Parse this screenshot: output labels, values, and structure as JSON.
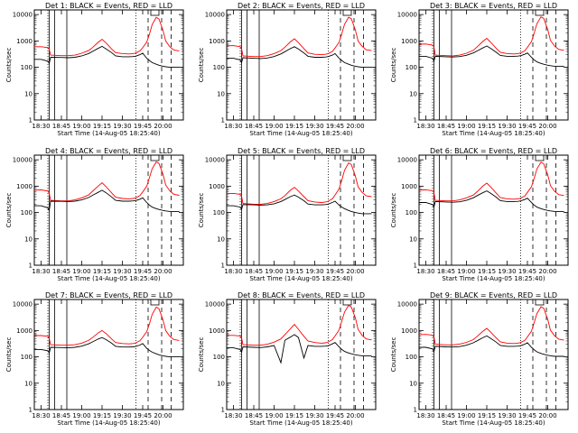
{
  "colors": {
    "events": "#000000",
    "lld": "#ff0000",
    "markers": "#000000",
    "background": "#ffffff"
  },
  "chart_data": {
    "type": "line",
    "panel_titles": [
      "Det 1: BLACK = Events, RED = LLD",
      "Det 2: BLACK = Events, RED = LLD",
      "Det 3: BLACK = Events, RED = LLD",
      "Det 4: BLACK = Events, RED = LLD",
      "Det 5: BLACK = Events, RED = LLD",
      "Det 6: BLACK = Events, RED = LLD",
      "Det 7: BLACK = Events, RED = LLD",
      "Det 8: BLACK = Events, RED = LLD",
      "Det 9: BLACK = Events, RED = LLD"
    ],
    "xlabel": "Start Time (14-Aug-05 18:25:40)",
    "ylabel": "Counts/sec",
    "yscale": "log",
    "ylim": [
      1,
      15000
    ],
    "xlim": [
      "18:25",
      "20:15"
    ],
    "x_ticks": [
      "18:30",
      "18:45",
      "19:00",
      "19:15",
      "19:30",
      "19:45",
      "20:00"
    ],
    "y_ticks": [
      "1",
      "10",
      "100",
      "1000",
      "10000"
    ],
    "layout": "3x3 grid",
    "markers": {
      "solid": [
        "18:36",
        "18:40",
        "18:49"
      ],
      "dotted": [
        "18:35",
        "19:40"
      ],
      "dashed": [
        "19:49",
        "19:59",
        "20:06"
      ],
      "box": [
        "19:51",
        "19:57"
      ]
    },
    "x": [
      "18:25",
      "18:30",
      "18:35",
      "18:36",
      "18:37",
      "18:45",
      "18:50",
      "18:55",
      "19:00",
      "19:05",
      "19:08",
      "19:12",
      "19:15",
      "19:18",
      "19:22",
      "19:25",
      "19:30",
      "19:35",
      "19:38",
      "19:40",
      "19:43",
      "19:45",
      "19:48",
      "19:50",
      "19:52",
      "19:55",
      "19:57",
      "20:00",
      "20:02",
      "20:05",
      "20:08",
      "20:12"
    ],
    "series_sets": [
      {
        "detector": "Det 1",
        "series": [
          {
            "name": "LLD",
            "color": "#ff0000",
            "values": [
              600,
              600,
              560,
              480,
              290,
              275,
              275,
              290,
              340,
              430,
              560,
              880,
              1150,
              830,
              500,
              360,
              330,
              320,
              330,
              350,
              420,
              550,
              900,
              1800,
              4200,
              7800,
              6800,
              2500,
              1000,
              600,
              450,
              420
            ]
          },
          {
            "name": "Events",
            "color": "#000000",
            "values": [
              200,
              200,
              170,
              140,
              240,
              235,
              230,
              240,
              270,
              330,
              400,
              520,
              620,
              500,
              360,
              270,
              250,
              250,
              255,
              265,
              300,
              340,
              220,
              180,
              150,
              130,
              120,
              110,
              105,
              100,
              100,
              100
            ]
          }
        ]
      },
      {
        "detector": "Det 2",
        "series": [
          {
            "name": "LLD",
            "color": "#ff0000",
            "values": [
              650,
              660,
              600,
              500,
              270,
              255,
              255,
              275,
              330,
              430,
              580,
              920,
              1200,
              860,
              510,
              350,
              310,
              300,
              310,
              330,
              400,
              540,
              900,
              1900,
              4300,
              7900,
              7000,
              2600,
              1000,
              620,
              460,
              430
            ]
          },
          {
            "name": "Events",
            "color": "#000000",
            "values": [
              220,
              220,
              190,
              150,
              230,
              220,
              215,
              225,
              255,
              320,
              390,
              510,
              600,
              490,
              350,
              260,
              240,
              240,
              245,
              255,
              290,
              330,
              220,
              180,
              150,
              130,
              120,
              110,
              105,
              100,
              100,
              100
            ]
          }
        ]
      },
      {
        "detector": "Det 3",
        "series": [
          {
            "name": "LLD",
            "color": "#ff0000",
            "values": [
              750,
              760,
              700,
              580,
              290,
              275,
              270,
              290,
              340,
              440,
              600,
              950,
              1250,
              880,
              520,
              370,
              330,
              320,
              330,
              350,
              420,
              570,
              950,
              2000,
              4500,
              8200,
              7200,
              2700,
              1050,
              640,
              480,
              440
            ]
          },
          {
            "name": "Events",
            "color": "#000000",
            "values": [
              260,
              260,
              220,
              170,
              260,
              250,
              245,
              255,
              285,
              350,
              420,
              540,
              640,
              520,
              370,
              280,
              260,
              260,
              265,
              275,
              310,
              350,
              240,
              190,
              160,
              140,
              130,
              120,
              115,
              110,
              110,
              110
            ]
          }
        ]
      },
      {
        "detector": "Det 4",
        "series": [
          {
            "name": "LLD",
            "color": "#ff0000",
            "values": [
              700,
              720,
              650,
              540,
              290,
              275,
              275,
              300,
              360,
              460,
              640,
              1000,
              1350,
              950,
              560,
              380,
              340,
              330,
              340,
              360,
              440,
              600,
              1000,
              2100,
              4600,
              8300,
              7300,
              2800,
              1100,
              660,
              490,
              450
            ]
          },
          {
            "name": "Events",
            "color": "#000000",
            "values": [
              180,
              180,
              150,
              120,
              270,
              265,
              260,
              270,
              300,
              370,
              450,
              580,
              700,
              560,
              390,
              290,
              270,
              270,
              275,
              285,
              320,
              360,
              240,
              190,
              160,
              140,
              130,
              120,
              115,
              110,
              110,
              110
            ]
          }
        ]
      },
      {
        "detector": "Det 5",
        "series": [
          {
            "name": "LLD",
            "color": "#ff0000",
            "values": [
              520,
              530,
              490,
              420,
              220,
              205,
              205,
              220,
              260,
              330,
              440,
              700,
              900,
              650,
              400,
              280,
              250,
              240,
              250,
              270,
              330,
              460,
              800,
              1700,
              4000,
              7600,
              6600,
              2400,
              950,
              580,
              430,
              400
            ]
          },
          {
            "name": "Events",
            "color": "#000000",
            "values": [
              180,
              180,
              160,
              130,
              200,
              195,
              190,
              195,
              215,
              260,
              310,
              400,
              460,
              380,
              280,
              210,
              195,
              195,
              200,
              210,
              240,
              270,
              190,
              160,
              140,
              120,
              110,
              100,
              95,
              90,
              90,
              90
            ]
          }
        ]
      },
      {
        "detector": "Det 6",
        "series": [
          {
            "name": "LLD",
            "color": "#ff0000",
            "values": [
              720,
              730,
              670,
              560,
              290,
              275,
              275,
              300,
              360,
              460,
              620,
              1000,
              1300,
              920,
              540,
              370,
              330,
              320,
              330,
              350,
              420,
              580,
              960,
              2000,
              4500,
              8100,
              7100,
              2700,
              1050,
              640,
              480,
              440
            ]
          },
          {
            "name": "Events",
            "color": "#000000",
            "values": [
              240,
              240,
              200,
              160,
              260,
              250,
              245,
              255,
              290,
              360,
              440,
              560,
              660,
              530,
              380,
              280,
              260,
              260,
              265,
              275,
              310,
              350,
              240,
              190,
              160,
              140,
              130,
              120,
              115,
              110,
              110,
              110
            ]
          }
        ]
      },
      {
        "detector": "Det 7",
        "series": [
          {
            "name": "LLD",
            "color": "#ff0000",
            "values": [
              640,
              640,
              600,
              500,
              290,
              275,
              275,
              290,
              330,
              420,
              540,
              800,
              1000,
              760,
              480,
              350,
              320,
              310,
              320,
              340,
              410,
              550,
              900,
              1800,
              4100,
              7700,
              6700,
              2500,
              1000,
              600,
              450,
              420
            ]
          },
          {
            "name": "Events",
            "color": "#000000",
            "values": [
              190,
              190,
              170,
              140,
              230,
              225,
              220,
              230,
              255,
              310,
              370,
              470,
              540,
              450,
              330,
              250,
              235,
              235,
              240,
              250,
              280,
              320,
              210,
              175,
              150,
              130,
              120,
              110,
              105,
              100,
              100,
              100
            ]
          }
        ]
      },
      {
        "detector": "Det 8",
        "series": [
          {
            "name": "LLD",
            "color": "#ff0000",
            "values": [
              650,
              650,
              620,
              520,
              290,
              275,
              275,
              300,
              360,
              480,
              700,
              1150,
              1700,
              1100,
              600,
              400,
              350,
              330,
              340,
              370,
              450,
              620,
              1050,
              2300,
              5000,
              9000,
              7800,
              3000,
              1100,
              650,
              480,
              440
            ]
          },
          {
            "name": "Events",
            "color": "#000000",
            "values": [
              220,
              220,
              190,
              150,
              240,
              230,
              225,
              240,
              270,
              60,
              430,
              560,
              700,
              540,
              90,
              270,
              250,
              250,
              255,
              265,
              310,
              350,
              240,
              190,
              160,
              140,
              130,
              120,
              115,
              110,
              110,
              110
            ]
          }
        ]
      },
      {
        "detector": "Det 9",
        "series": [
          {
            "name": "LLD",
            "color": "#ff0000",
            "values": [
              700,
              710,
              660,
              560,
              300,
              285,
              285,
              305,
              355,
              450,
              600,
              920,
              1200,
              860,
              520,
              370,
              330,
              320,
              330,
              350,
              420,
              570,
              950,
              2000,
              4400,
              8000,
              7000,
              2650,
              1030,
              630,
              470,
              430
            ]
          },
          {
            "name": "Events",
            "color": "#000000",
            "values": [
              230,
              230,
              200,
              160,
              250,
              240,
              235,
              245,
              275,
              340,
              410,
              530,
              620,
              500,
              360,
              270,
              250,
              250,
              255,
              265,
              300,
              340,
              230,
              185,
              155,
              135,
              125,
              115,
              110,
              105,
              105,
              105
            ]
          }
        ]
      }
    ]
  }
}
